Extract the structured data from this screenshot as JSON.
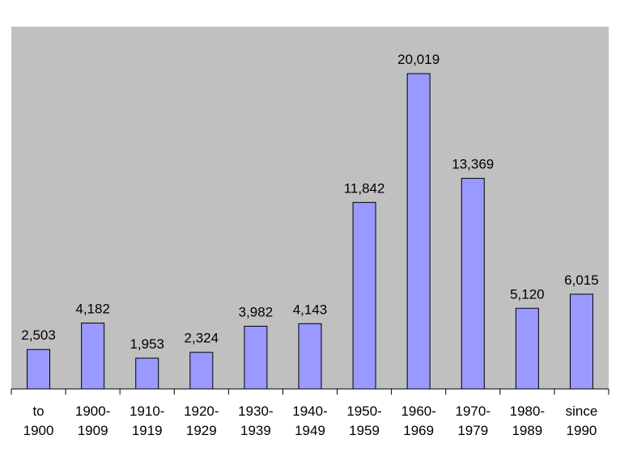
{
  "colors": {
    "plot_background": "#c0c0c0",
    "bar_fill": "#9999ff",
    "bar_stroke": "#000000",
    "axis": "#000000"
  },
  "chart_data": {
    "type": "bar",
    "categories": [
      [
        "to",
        "1900"
      ],
      [
        "1900-",
        "1909"
      ],
      [
        "1910-",
        "1919"
      ],
      [
        "1920-",
        "1929"
      ],
      [
        "1930-",
        "1939"
      ],
      [
        "1940-",
        "1949"
      ],
      [
        "1950-",
        "1959"
      ],
      [
        "1960-",
        "1969"
      ],
      [
        "1970-",
        "1979"
      ],
      [
        "1980-",
        "1989"
      ],
      [
        "since",
        "1990"
      ]
    ],
    "values": [
      2503,
      4182,
      1953,
      2324,
      3982,
      4143,
      11842,
      20019,
      13369,
      5120,
      6015
    ],
    "data_labels": [
      "2,503",
      "4,182",
      "1,953",
      "2,324",
      "3,982",
      "4,143",
      "11,842",
      "20,019",
      "13,369",
      "5,120",
      "6,015"
    ],
    "title": "",
    "xlabel": "",
    "ylabel": "",
    "ylim": [
      0,
      23000
    ],
    "grid": false,
    "legend": "none"
  }
}
